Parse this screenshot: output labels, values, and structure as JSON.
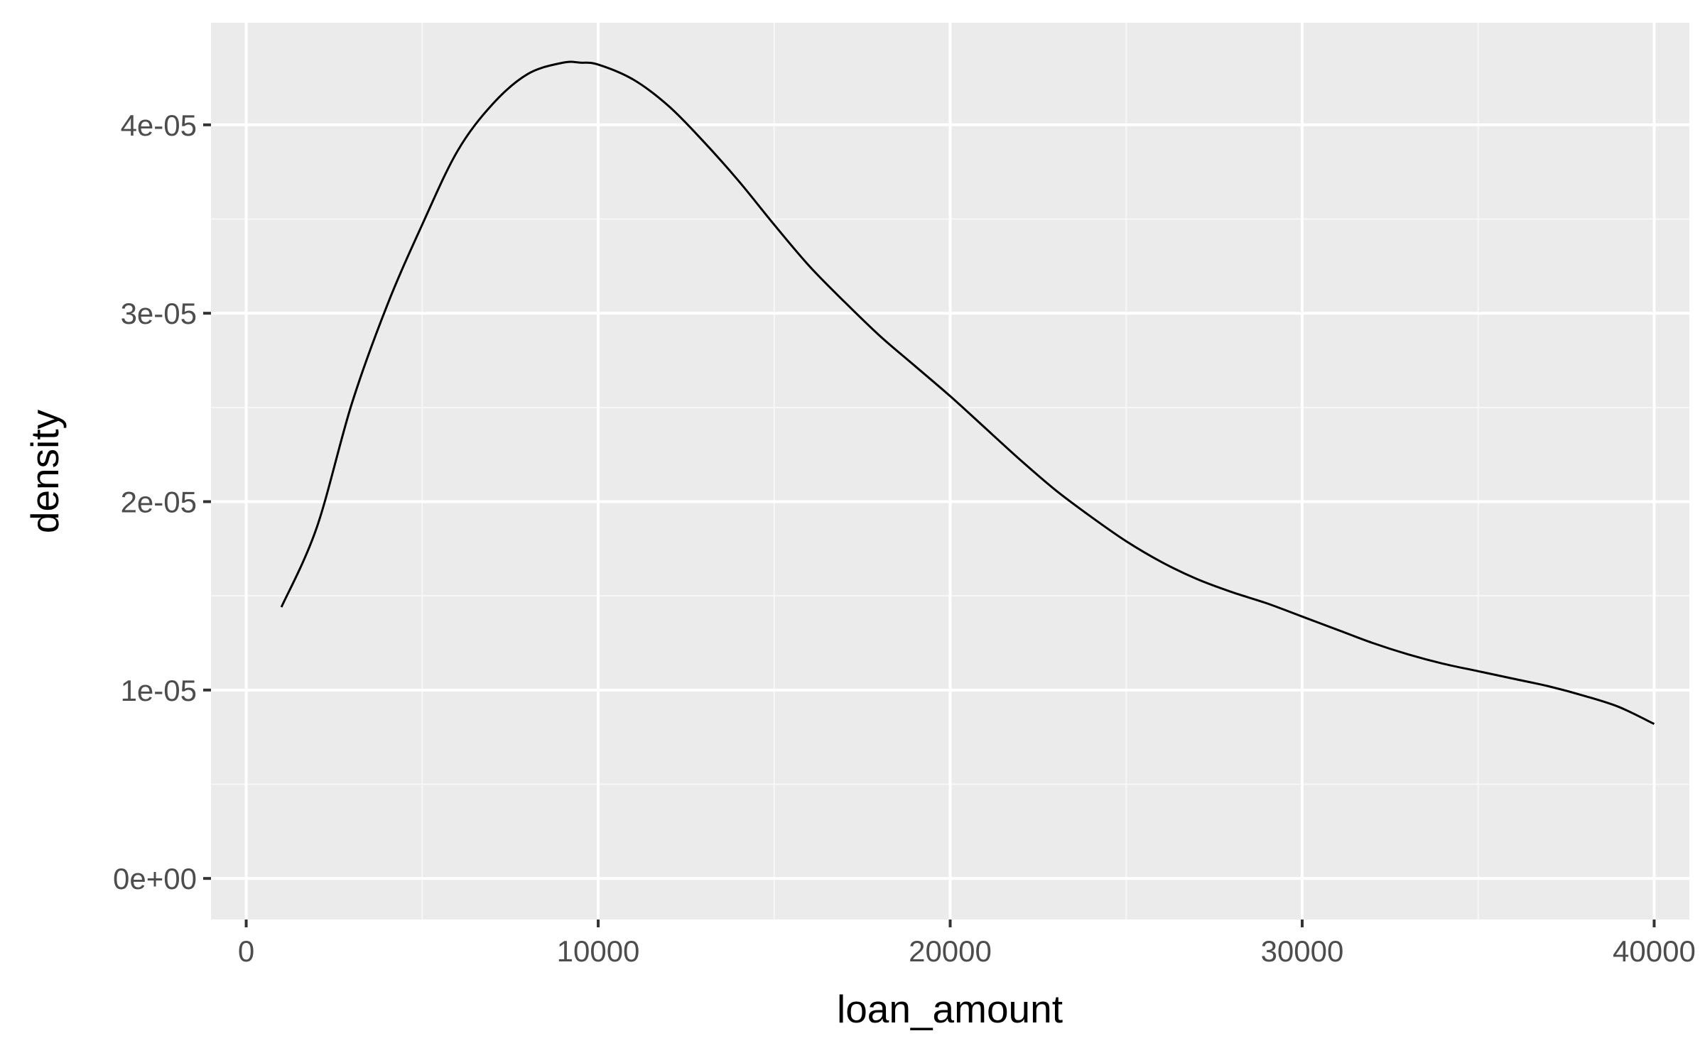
{
  "colors": {
    "panel_background": "#EBEBEB",
    "grid_major": "#FFFFFF",
    "grid_minor": "#F7F7F7",
    "line": "#000000",
    "tick_label": "#4D4D4D",
    "tick_mark": "#333333"
  },
  "chart_data": {
    "type": "line",
    "title": "",
    "xlabel": "loan_amount",
    "ylabel": "density",
    "xlim": [
      -1000,
      41000
    ],
    "ylim": [
      -2.18e-06,
      4.542e-05
    ],
    "x_ticks": [
      {
        "value": 0,
        "label": "0"
      },
      {
        "value": 10000,
        "label": "10000"
      },
      {
        "value": 20000,
        "label": "20000"
      },
      {
        "value": 30000,
        "label": "30000"
      },
      {
        "value": 40000,
        "label": "40000"
      }
    ],
    "y_ticks": [
      {
        "value": 0,
        "label": "0e+00"
      },
      {
        "value": 1e-05,
        "label": "1e-05"
      },
      {
        "value": 2e-05,
        "label": "2e-05"
      },
      {
        "value": 3e-05,
        "label": "3e-05"
      },
      {
        "value": 4e-05,
        "label": "4e-05"
      }
    ],
    "x_minor": [
      5000,
      15000,
      25000,
      35000
    ],
    "y_minor": [
      5e-06,
      1.5e-05,
      2.5e-05,
      3.5e-05
    ],
    "grid": true,
    "legend": "none",
    "series": [
      {
        "x": [
          1000,
          2000,
          3000,
          4000,
          5000,
          6000,
          7000,
          8000,
          9000,
          9500,
          10000,
          11000,
          12000,
          13000,
          14000,
          15000,
          16000,
          17000,
          18000,
          19000,
          20000,
          21000,
          22000,
          23000,
          24000,
          25000,
          26000,
          27000,
          28000,
          29000,
          30000,
          31000,
          32000,
          33000,
          34000,
          35000,
          36000,
          37000,
          38000,
          39000,
          40000
        ],
        "y": [
          1.44e-05,
          1.86e-05,
          2.52e-05,
          3.04e-05,
          3.47e-05,
          3.86e-05,
          4.11e-05,
          4.27e-05,
          4.33e-05,
          4.33e-05,
          4.32e-05,
          4.24e-05,
          4.1e-05,
          3.91e-05,
          3.7e-05,
          3.47e-05,
          3.25e-05,
          3.06e-05,
          2.88e-05,
          2.72e-05,
          2.56e-05,
          2.39e-05,
          2.22e-05,
          2.06e-05,
          1.92e-05,
          1.79e-05,
          1.68e-05,
          1.59e-05,
          1.52e-05,
          1.46e-05,
          1.39e-05,
          1.32e-05,
          1.25e-05,
          1.19e-05,
          1.14e-05,
          1.1e-05,
          1.06e-05,
          1.02e-05,
          9.7e-06,
          9.1e-06,
          8.2e-06
        ]
      }
    ]
  }
}
